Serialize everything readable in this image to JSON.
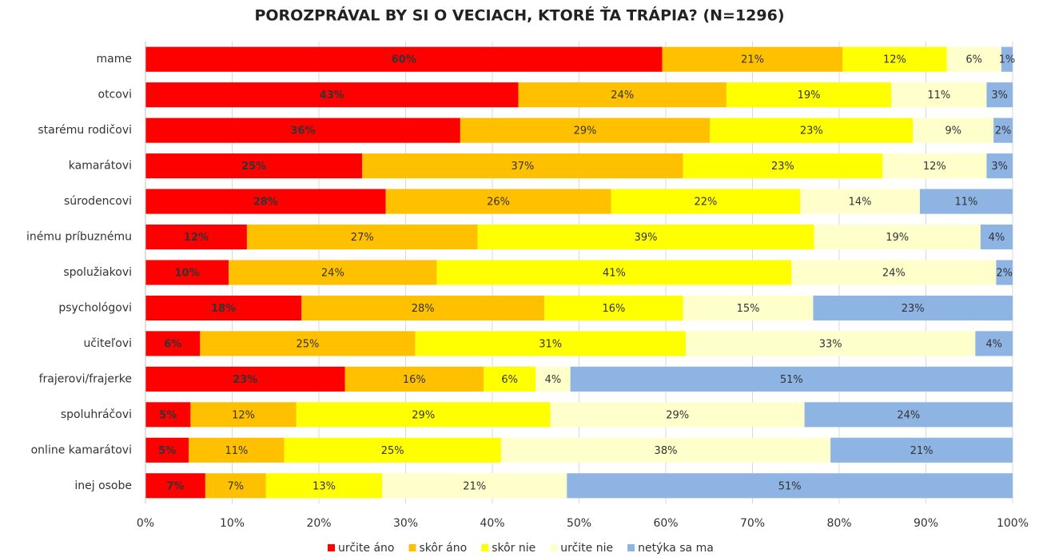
{
  "chart_data": {
    "type": "stacked_bar_horizontal",
    "title": "POROZPRÁVAL BY SI O VECIACH, KTORÉ ŤA TRÁPIA? (N=1296)",
    "categories": [
      "mame",
      "otcovi",
      "starému rodičovi",
      "kamarátovi",
      "súrodencovi",
      "inému príbuznému",
      "spolužiakovi",
      "psychológovi",
      "učiteľovi",
      "frajerovi/frajerke",
      "spoluhráčovi",
      "online kamarátovi",
      "inej osobe"
    ],
    "series": [
      {
        "name": "určite áno",
        "color": "#ff0000",
        "values": [
          59.6,
          43,
          36.3,
          25,
          27.7,
          11.7,
          9.6,
          18,
          6.3,
          23,
          5.2,
          5,
          6.9
        ],
        "value_labels": [
          "60%",
          "43%",
          "36%",
          "25%",
          "28%",
          "12%",
          "10%",
          "18%",
          "6%",
          "23%",
          "5%",
          "5%",
          "7%"
        ]
      },
      {
        "name": "skôr áno",
        "color": "#ffc000",
        "values": [
          20.8,
          24,
          28.8,
          37,
          26.0,
          26.6,
          24.0,
          28,
          24.8,
          16,
          12.2,
          11,
          7.0
        ],
        "value_labels": [
          "21%",
          "24%",
          "29%",
          "37%",
          "26%",
          "27%",
          "24%",
          "28%",
          "25%",
          "16%",
          "12%",
          "11%",
          "7%"
        ]
      },
      {
        "name": "skôr nie",
        "color": "#ffff00",
        "values": [
          12.0,
          19,
          23.4,
          23,
          21.8,
          38.8,
          40.9,
          16,
          31.2,
          6,
          29.3,
          25,
          13.4
        ],
        "value_labels": [
          "12%",
          "19%",
          "23%",
          "23%",
          "22%",
          "39%",
          "41%",
          "16%",
          "31%",
          "6%",
          "29%",
          "25%",
          "13%"
        ]
      },
      {
        "name": "určite nie",
        "color": "#ffffcc",
        "values": [
          6.3,
          11,
          9.3,
          12,
          13.8,
          19.2,
          23.6,
          15,
          33.4,
          4,
          29.3,
          38,
          21.3
        ],
        "value_labels": [
          "6%",
          "11%",
          "9%",
          "12%",
          "14%",
          "19%",
          "24%",
          "15%",
          "33%",
          "4%",
          "29%",
          "38%",
          "21%"
        ]
      },
      {
        "name": "netýka sa ma",
        "color": "#8eb4e3",
        "values": [
          1.3,
          3,
          2.2,
          3,
          10.7,
          3.7,
          1.9,
          23,
          4.3,
          51,
          24.0,
          21,
          51.4
        ],
        "value_labels": [
          "1%",
          "3%",
          "2%",
          "3%",
          "11%",
          "4%",
          "2%",
          "23%",
          "4%",
          "51%",
          "24%",
          "21%",
          "51%"
        ]
      }
    ],
    "xlim": [
      0,
      100
    ],
    "xticks": [
      {
        "value": 0,
        "label": "0%"
      },
      {
        "value": 10,
        "label": "10%"
      },
      {
        "value": 20,
        "label": "20%"
      },
      {
        "value": 30,
        "label": "30%"
      },
      {
        "value": 40,
        "label": "40%"
      },
      {
        "value": 50,
        "label": "50%"
      },
      {
        "value": 60,
        "label": "60%"
      },
      {
        "value": 70,
        "label": "70%"
      },
      {
        "value": 80,
        "label": "80%"
      },
      {
        "value": 90,
        "label": "90%"
      },
      {
        "value": 100,
        "label": "100%"
      }
    ],
    "grid": true,
    "legend": "bottom"
  }
}
